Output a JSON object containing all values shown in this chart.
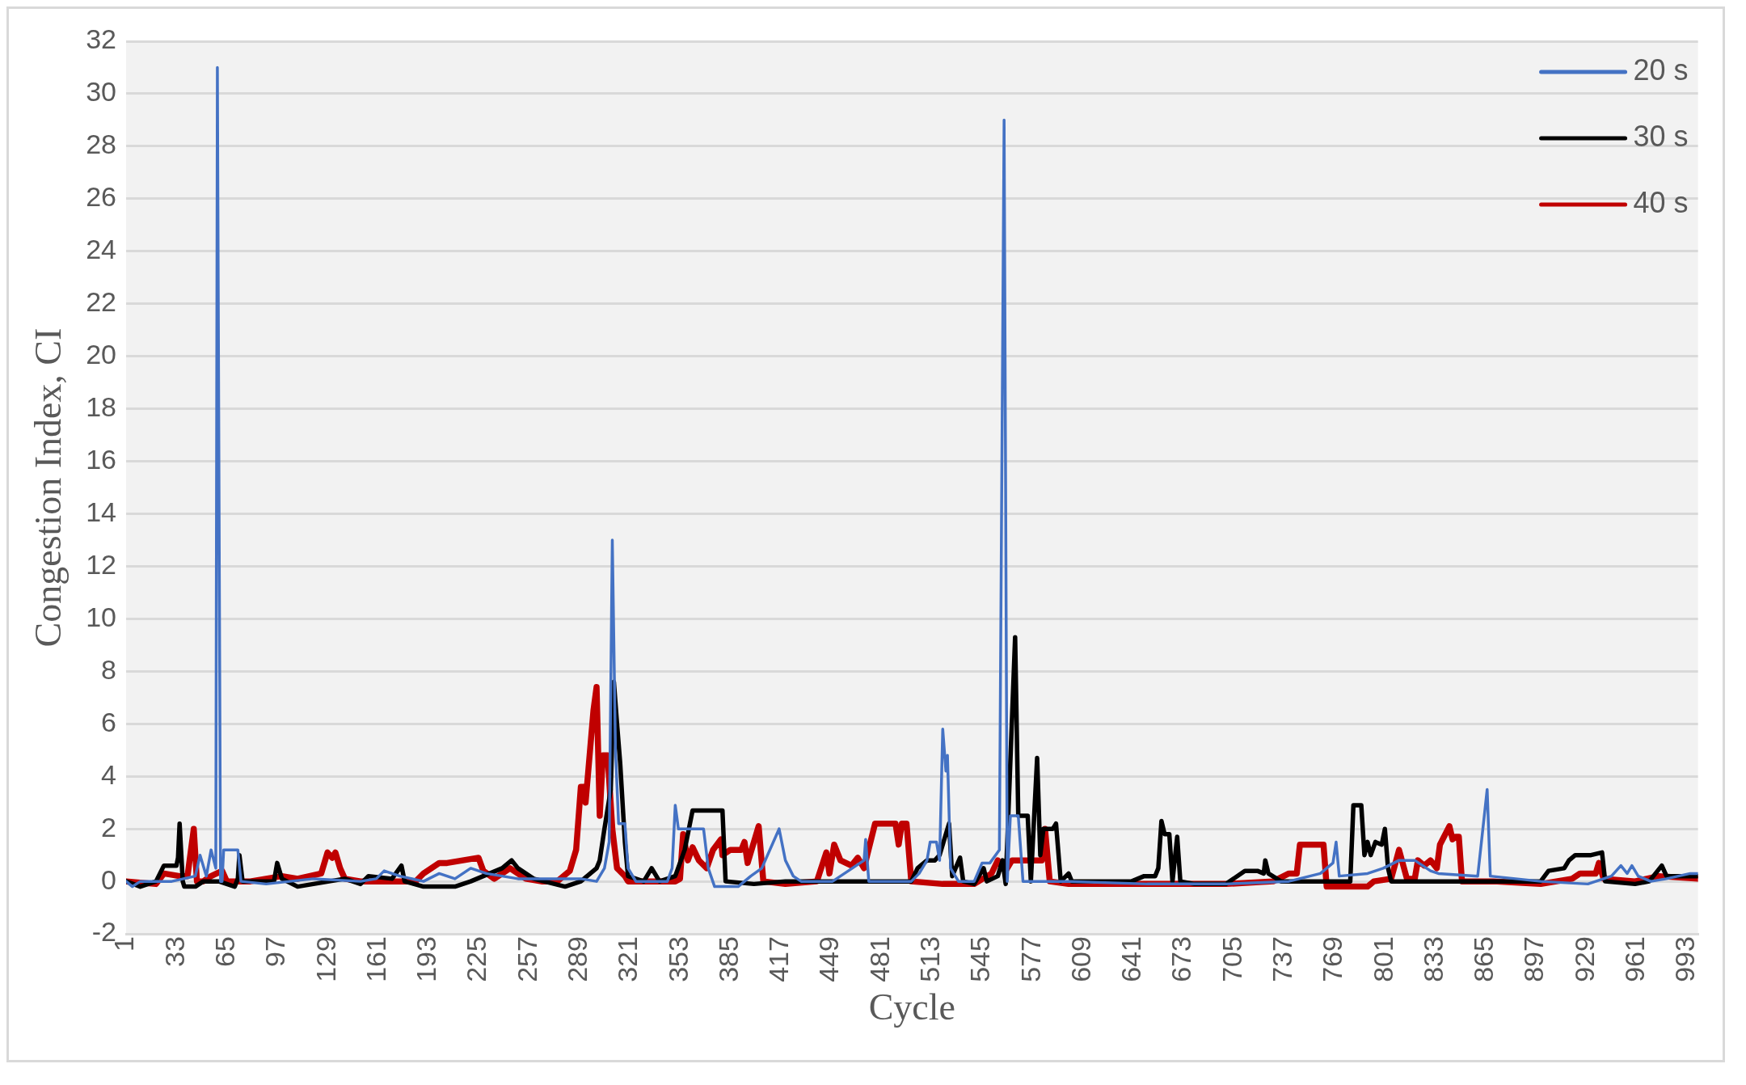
{
  "chart_data": {
    "type": "line",
    "xlabel": "Cycle",
    "ylabel": "Congestion Index, CI",
    "xlim": [
      1,
      1000
    ],
    "xticks": [
      1,
      33,
      65,
      97,
      129,
      161,
      193,
      225,
      257,
      289,
      321,
      353,
      385,
      417,
      449,
      481,
      513,
      545,
      577,
      609,
      641,
      673,
      705,
      737,
      769,
      801,
      833,
      865,
      897,
      929,
      961,
      993
    ],
    "ylim": [
      -2,
      32
    ],
    "yticks": [
      -2,
      0,
      2,
      4,
      6,
      8,
      10,
      12,
      14,
      16,
      18,
      20,
      22,
      24,
      26,
      28,
      30,
      32
    ],
    "grid": "y",
    "legend": "top right",
    "marker": "none",
    "line_style": "solid",
    "series": [
      {
        "name": "20 s",
        "color": "#4472c4",
        "x": [
          1,
          5,
          10,
          30,
          45,
          48,
          52,
          55,
          58,
          59,
          61,
          62,
          63,
          72,
          74,
          90,
          120,
          150,
          160,
          165,
          175,
          190,
          200,
          210,
          220,
          230,
          250,
          270,
          290,
          300,
          305,
          308,
          310,
          312,
          314,
          318,
          320,
          325,
          345,
          348,
          350,
          352,
          368,
          371,
          375,
          390,
          398,
          405,
          416,
          420,
          425,
          430,
          450,
          470,
          471,
          473,
          500,
          505,
          510,
          512,
          516,
          518,
          520,
          522,
          523,
          525,
          530,
          540,
          545,
          550,
          556,
          559,
          561,
          563,
          568,
          571,
          580,
          600,
          650,
          700,
          740,
          760,
          768,
          770,
          772,
          790,
          800,
          810,
          820,
          830,
          835,
          860,
          866,
          868,
          900,
          930,
          945,
          951,
          955,
          958,
          962,
          970,
          980,
          995,
          1000
        ],
        "values": [
          0,
          -0.2,
          0,
          0,
          0.2,
          1,
          0.2,
          1.2,
          0.5,
          31,
          0,
          0,
          1.2,
          1.2,
          0,
          -0.1,
          0.1,
          0,
          0.1,
          0.4,
          0.2,
          0,
          0.3,
          0.1,
          0.5,
          0.3,
          0.1,
          0.1,
          0.1,
          0,
          0.5,
          1.5,
          13,
          5,
          2.2,
          2.2,
          0.5,
          0,
          0,
          0.5,
          2.9,
          2,
          2,
          0.5,
          -0.2,
          -0.2,
          0.2,
          0.5,
          2,
          0.8,
          0.2,
          0,
          0,
          0.8,
          1.6,
          0,
          0,
          0.3,
          0.8,
          1.5,
          1.5,
          0.8,
          5.8,
          4.2,
          4.8,
          0.5,
          0,
          0,
          0.7,
          0.7,
          1.2,
          29,
          0,
          2.5,
          2.5,
          0,
          0,
          0,
          -0.1,
          -0.1,
          0,
          0.3,
          0.7,
          1.5,
          0.2,
          0.3,
          0.5,
          0.8,
          0.8,
          0.4,
          0.3,
          0.2,
          3.5,
          0.2,
          0,
          -0.1,
          0.2,
          0.6,
          0.3,
          0.6,
          0.2,
          0,
          0.1,
          0.3,
          0.3
        ]
      },
      {
        "name": "30 s",
        "color": "#000000",
        "x": [
          1,
          10,
          20,
          25,
          33,
          34,
          35,
          37,
          38,
          45,
          50,
          60,
          70,
          72,
          73,
          75,
          95,
          97,
          100,
          110,
          130,
          140,
          150,
          155,
          170,
          176,
          178,
          190,
          210,
          220,
          240,
          246,
          250,
          260,
          280,
          290,
          300,
          302,
          305,
          309,
          311,
          313,
          315,
          318,
          320,
          330,
          335,
          340,
          350,
          356,
          361,
          380,
          382,
          400,
          420,
          450,
          500,
          504,
          510,
          515,
          518,
          524,
          526,
          531,
          533,
          540,
          546,
          548,
          555,
          558,
          560,
          566,
          568,
          574,
          576,
          580,
          582,
          584,
          590,
          592,
          595,
          600,
          602,
          640,
          648,
          655,
          657,
          659,
          661,
          664,
          666,
          669,
          671,
          680,
          700,
          712,
          720,
          724,
          725,
          727,
          735,
          779,
          781,
          786,
          788,
          790,
          792,
          795,
          799,
          801,
          803,
          805,
          830,
          900,
          905,
          915,
          918,
          922,
          932,
          939,
          941,
          960,
          969,
          977,
          980,
          1000
        ],
        "values": [
          0,
          -0.2,
          0,
          0.6,
          0.6,
          0.9,
          2.2,
          0,
          -0.2,
          -0.2,
          0,
          0,
          -0.2,
          0.1,
          1,
          0,
          0,
          0.7,
          0.1,
          -0.2,
          0,
          0.1,
          -0.1,
          0.2,
          0.1,
          0.6,
          0,
          -0.2,
          -0.2,
          0,
          0.5,
          0.8,
          0.5,
          0.1,
          -0.2,
          0,
          0.5,
          0.8,
          2,
          3.5,
          7.6,
          6,
          4.5,
          1.5,
          0.2,
          0,
          0.5,
          0,
          0.2,
          1.2,
          2.7,
          2.7,
          0,
          -0.1,
          0,
          0,
          0,
          0.5,
          0.8,
          0.8,
          1,
          2.2,
          0.2,
          0.9,
          0,
          -0.1,
          0.5,
          0,
          0.2,
          0.8,
          -0.1,
          9.3,
          2.5,
          2.5,
          0,
          4.7,
          1,
          2,
          2,
          2.2,
          0,
          0.3,
          0,
          0,
          0.2,
          0.2,
          0.5,
          2.3,
          1.8,
          1.8,
          0,
          1.7,
          0,
          -0.1,
          -0.1,
          0.4,
          0.4,
          0.3,
          0.8,
          0.3,
          0,
          0,
          2.9,
          2.9,
          1,
          1.5,
          1,
          1.5,
          1.4,
          2,
          0.5,
          0,
          0,
          0,
          0.4,
          0.5,
          0.8,
          1,
          1,
          1.1,
          0,
          -0.1,
          0,
          0.6,
          0.2,
          0.2
        ]
      },
      {
        "name": "40 s",
        "color": "#c00000",
        "x": [
          1,
          20,
          25,
          35,
          40,
          44,
          46,
          50,
          55,
          62,
          65,
          80,
          100,
          110,
          125,
          127,
          129,
          132,
          134,
          137,
          140,
          150,
          185,
          190,
          195,
          200,
          205,
          215,
          225,
          228,
          235,
          245,
          250,
          255,
          265,
          275,
          283,
          287,
          290,
          292,
          293,
          298,
          300,
          302,
          304,
          307,
          310,
          313,
          318,
          320,
          350,
          353,
          355,
          358,
          361,
          365,
          370,
          374,
          379,
          380,
          385,
          392,
          394,
          396,
          403,
          406,
          420,
          440,
          446,
          448,
          451,
          455,
          462,
          466,
          470,
          472,
          477,
          490,
          492,
          494,
          497,
          500,
          520,
          540,
          551,
          555,
          560,
          564,
          575,
          583,
          585,
          588,
          600,
          700,
          730,
          740,
          745,
          747,
          762,
          764,
          790,
          794,
          805,
          810,
          815,
          820,
          822,
          826,
          830,
          834,
          836,
          842,
          844,
          846,
          848,
          850,
          870,
          900,
          920,
          925,
          935,
          937,
          940,
          960,
          975,
          1000
        ],
        "values": [
          0,
          -0.1,
          0.3,
          0.2,
          0.2,
          2,
          0,
          0,
          0.2,
          0.4,
          0,
          0,
          0.2,
          0.1,
          0.3,
          0.7,
          1.1,
          0.9,
          1.1,
          0.5,
          0.1,
          0,
          0,
          0.3,
          0.5,
          0.7,
          0.7,
          0.8,
          0.9,
          0.4,
          0.1,
          0.5,
          0.3,
          0.1,
          0,
          0,
          0.4,
          1.2,
          3.6,
          3.6,
          3,
          6.5,
          7.4,
          2.5,
          4.8,
          4.8,
          2,
          0.5,
          0.2,
          0,
          0,
          0.1,
          1.8,
          0.8,
          1.3,
          0.8,
          0.5,
          1.2,
          1.6,
          1,
          1.2,
          1.2,
          1.5,
          0.7,
          2.1,
          0,
          -0.1,
          0,
          1.1,
          0.3,
          1.4,
          0.8,
          0.6,
          0.9,
          0.5,
          1,
          2.2,
          2.2,
          1.4,
          2.2,
          2.2,
          0,
          -0.1,
          -0.1,
          0.3,
          0.8,
          0.4,
          0.8,
          0.8,
          0.8,
          2,
          0,
          -0.1,
          -0.1,
          0,
          0.3,
          0.3,
          1.4,
          1.4,
          -0.2,
          -0.2,
          0,
          0.1,
          1.2,
          0.1,
          0.1,
          0.8,
          0.6,
          0.8,
          0.5,
          1.4,
          2.1,
          1.6,
          1.7,
          1.7,
          0,
          0,
          -0.1,
          0.1,
          0.3,
          0.3,
          0.7,
          0.1,
          0,
          0.2,
          0.1
        ]
      }
    ]
  }
}
